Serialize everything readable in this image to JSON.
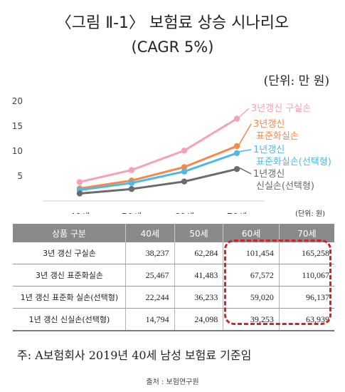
{
  "header": {
    "title": "〈그림 Ⅱ-1〉 보험료 상승 시나리오",
    "subtitle": "(CAGR 5%)",
    "unit_top": "(단위: 만 원)"
  },
  "chart_data": {
    "type": "line",
    "x": [
      "40세",
      "50세",
      "60세",
      "70세"
    ],
    "ylim": [
      0,
      20
    ],
    "yticks": [
      "20",
      "15",
      "10",
      "5"
    ],
    "grid": false,
    "series": [
      {
        "name": "3년갱신 구실손",
        "values": [
          3.8,
          6.2,
          10.1,
          16.5
        ],
        "color": "#f4a3b4",
        "label_lines": [
          "3년갱신 구실손"
        ]
      },
      {
        "name": "3년갱신 표준화실손",
        "values": [
          2.5,
          4.1,
          6.8,
          11.0
        ],
        "color": "#f5894a",
        "label_lines": [
          "3년갱신",
          "표준화실손"
        ]
      },
      {
        "name": "1년갱신 표준화실손(선택형)",
        "values": [
          2.2,
          3.6,
          5.9,
          9.6
        ],
        "color": "#4fb8ea",
        "label_lines": [
          "1년갱신",
          "표준화실손(선택형)"
        ]
      },
      {
        "name": "1년갱신 신실손(선택형)",
        "values": [
          1.5,
          2.4,
          3.9,
          6.4
        ],
        "color": "#6b6b6b",
        "label_lines": [
          "1년갱신",
          "신실손(선택형)"
        ]
      }
    ]
  },
  "unit_small": "(단위: 원)",
  "table": {
    "headers": [
      "상품 구분",
      "40세",
      "50세",
      "60세",
      "70세"
    ],
    "rows": [
      [
        "3년 갱신 구실손",
        "38,237",
        "62,284",
        "101,454",
        "165,258"
      ],
      [
        "3년 갱신 표준화실손",
        "25,467",
        "41,483",
        "67,572",
        "110,067"
      ],
      [
        "1년 갱신 표준화 실손(선택형)",
        "22,244",
        "36,233",
        "59,020",
        "96,137"
      ],
      [
        "1년 갱신 신실손(선택형)",
        "14,794",
        "24,098",
        "39,253",
        "63,939"
      ]
    ]
  },
  "note": "주: A보험회사 2019년 40세 남성 보험료 기준임",
  "source": "출처 : 보험연구원",
  "colors": {
    "highlight_box": "#d2232a",
    "table_header_bg": "#8a8a8a"
  }
}
